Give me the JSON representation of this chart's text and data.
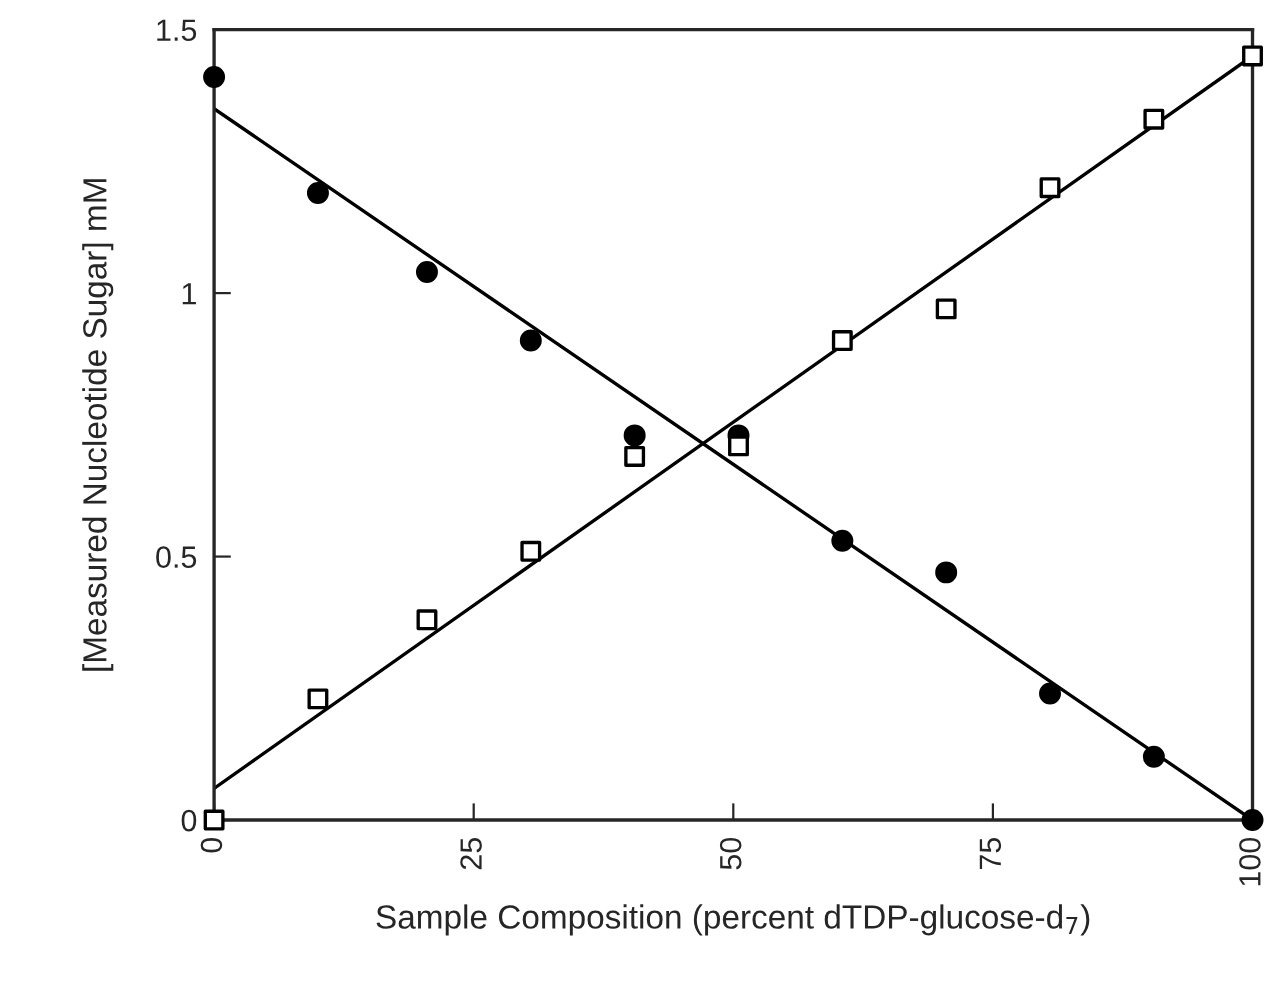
{
  "chart_data": {
    "type": "scatter",
    "xlabel": "Sample Composition (percent dTDP-glucose-d$_{7}$)",
    "ylabel": "[Measured Nucleotide Sugar] mM",
    "series": [
      {
        "marker": "circle",
        "color": "#000000",
        "x": [
          0,
          10,
          20.5,
          30.5,
          40.5,
          50.5,
          60.5,
          70.5,
          80.5,
          90.5,
          100
        ],
        "values": [
          1.41,
          1.19,
          1.04,
          0.91,
          0.73,
          0.73,
          0.53,
          0.47,
          0.24,
          0.12,
          0.0
        ]
      },
      {
        "marker": "square",
        "color": "#000000",
        "x": [
          0,
          10,
          20.5,
          30.5,
          40.5,
          50.5,
          60.5,
          70.5,
          80.5,
          90.5,
          100
        ],
        "values": [
          0.0,
          0.23,
          0.38,
          0.51,
          0.69,
          0.71,
          0.91,
          0.97,
          1.2,
          1.33,
          1.45
        ]
      },
      {
        "type": "line",
        "color": "#000000",
        "x": [
          0,
          100
        ],
        "values": [
          1.35,
          0.0
        ]
      },
      {
        "type": "line",
        "color": "#000000",
        "x": [
          0,
          100
        ],
        "values": [
          0.06,
          1.45
        ]
      }
    ],
    "xlim": [
      0,
      100
    ],
    "xticks": [
      0,
      25,
      50,
      75,
      100
    ],
    "ylim": [
      0,
      1.5
    ],
    "yticks": [
      0,
      {
        "value": 0.5,
        "label": "0.5"
      },
      1,
      {
        "value": 1.5,
        "label": "1.5"
      }
    ],
    "grid": false,
    "legend": false
  }
}
